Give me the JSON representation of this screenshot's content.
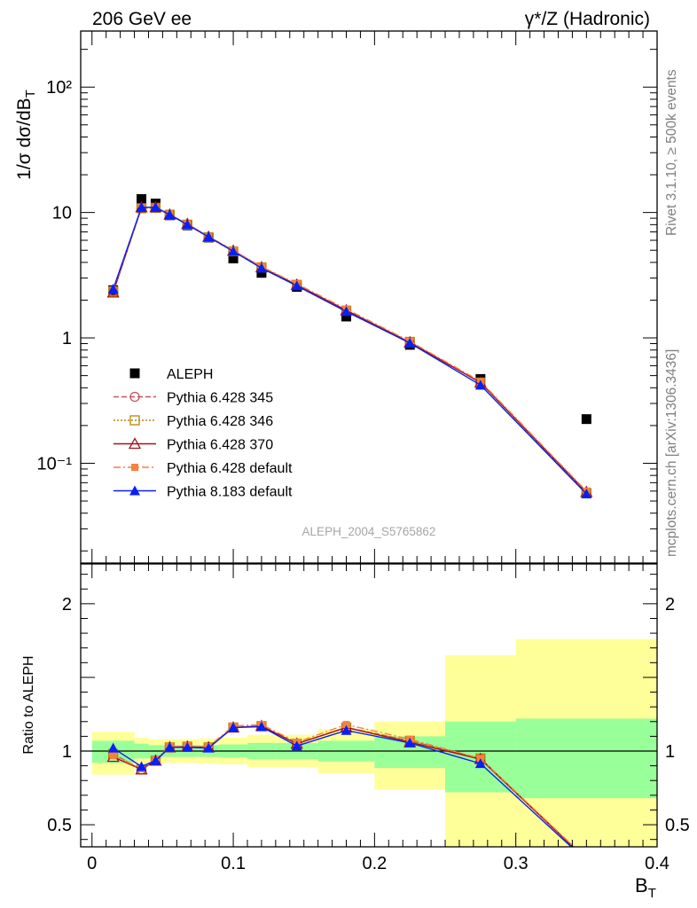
{
  "header": {
    "left": "206 GeV ee",
    "right": "γ*/Z (Hadronic)"
  },
  "side_text": {
    "top": "Rivet 3.1.10, ≥ 500k events",
    "bottom": "mcplots.cern.ch [arXiv:1306.3436]"
  },
  "watermark": "ALEPH_2004_S5765862",
  "chart_data": [
    {
      "type": "line",
      "ylabel": "1/σ dσ/dB_T",
      "yscale": "log",
      "ylim": [
        0.016,
        280
      ],
      "xlim": [
        -0.008,
        0.4
      ],
      "y_ticks": [
        {
          "value": 0.1,
          "label": "10⁻¹"
        },
        {
          "value": 1,
          "label": "1"
        },
        {
          "value": 10,
          "label": "10"
        },
        {
          "value": 100,
          "label": "10²"
        }
      ],
      "x": [
        0.015,
        0.035,
        0.045,
        0.055,
        0.0675,
        0.0825,
        0.1,
        0.12,
        0.145,
        0.18,
        0.225,
        0.275,
        0.35
      ],
      "series": [
        {
          "name": "ALEPH",
          "color": "#000000",
          "marker": "filled-square",
          "line": "none",
          "values": [
            2.4,
            12.8,
            11.8,
            9.5,
            7.9,
            6.3,
            4.3,
            3.3,
            2.55,
            1.48,
            0.88,
            0.47,
            0.225
          ]
        },
        {
          "name": "Pythia 6.428 345",
          "color": "#c4545f",
          "marker": "open-circle",
          "line": "dashed",
          "values": [
            2.35,
            10.8,
            10.9,
            9.6,
            8.0,
            6.35,
            4.9,
            3.65,
            2.65,
            1.65,
            0.93,
            0.44,
            0.058
          ]
        },
        {
          "name": "Pythia 6.428 346",
          "color": "#b8860b",
          "marker": "open-square",
          "line": "dotted",
          "values": [
            2.35,
            10.8,
            10.9,
            9.6,
            8.0,
            6.35,
            4.9,
            3.65,
            2.65,
            1.65,
            0.93,
            0.44,
            0.058
          ]
        },
        {
          "name": "Pythia 6.428 370",
          "color": "#a0141e",
          "marker": "open-triangle",
          "line": "solid",
          "values": [
            2.3,
            11.0,
            11.0,
            9.6,
            8.1,
            6.4,
            4.95,
            3.65,
            2.65,
            1.66,
            0.92,
            0.44,
            0.059
          ]
        },
        {
          "name": "Pythia 6.428 default",
          "color": "#f7813d",
          "marker": "filled-square-small",
          "line": "dashdot",
          "values": [
            2.4,
            11.0,
            11.0,
            9.7,
            8.1,
            6.45,
            5.0,
            3.7,
            2.7,
            1.7,
            0.94,
            0.45,
            0.06
          ]
        },
        {
          "name": "Pythia 8.183 default",
          "color": "#0a1ff5",
          "marker": "filled-triangle",
          "line": "solid",
          "values": [
            2.45,
            11.0,
            11.0,
            9.6,
            8.0,
            6.4,
            4.9,
            3.6,
            2.6,
            1.62,
            0.91,
            0.42,
            0.057
          ]
        }
      ]
    },
    {
      "type": "line",
      "ylabel": "Ratio to ALEPH",
      "xlabel": "B_T",
      "ylim": [
        0.35,
        2.27
      ],
      "xlim": [
        -0.008,
        0.4
      ],
      "y_ticks": [
        0.5,
        1,
        2
      ],
      "x_ticks": [
        0,
        0.1,
        0.2,
        0.3,
        0.4
      ],
      "reference_line": 1,
      "bands": [
        {
          "x0": 0.0,
          "x1": 0.03,
          "green": [
            0.92,
            1.07
          ],
          "yellow": [
            0.84,
            1.13
          ]
        },
        {
          "x0": 0.03,
          "x1": 0.04,
          "green": [
            0.95,
            1.05
          ],
          "yellow": [
            0.91,
            1.09
          ]
        },
        {
          "x0": 0.04,
          "x1": 0.05,
          "green": [
            0.95,
            1.04
          ],
          "yellow": [
            0.91,
            1.08
          ]
        },
        {
          "x0": 0.05,
          "x1": 0.06,
          "green": [
            0.96,
            1.04
          ],
          "yellow": [
            0.92,
            1.08
          ]
        },
        {
          "x0": 0.06,
          "x1": 0.075,
          "green": [
            0.96,
            1.04
          ],
          "yellow": [
            0.92,
            1.08
          ]
        },
        {
          "x0": 0.075,
          "x1": 0.09,
          "green": [
            0.96,
            1.04
          ],
          "yellow": [
            0.915,
            1.085
          ]
        },
        {
          "x0": 0.09,
          "x1": 0.11,
          "green": [
            0.955,
            1.045
          ],
          "yellow": [
            0.91,
            1.09
          ]
        },
        {
          "x0": 0.11,
          "x1": 0.13,
          "green": [
            0.945,
            1.055
          ],
          "yellow": [
            0.89,
            1.11
          ]
        },
        {
          "x0": 0.13,
          "x1": 0.16,
          "green": [
            0.945,
            1.055
          ],
          "yellow": [
            0.89,
            1.11
          ]
        },
        {
          "x0": 0.16,
          "x1": 0.2,
          "green": [
            0.93,
            1.07
          ],
          "yellow": [
            0.85,
            1.15
          ]
        },
        {
          "x0": 0.2,
          "x1": 0.25,
          "green": [
            0.885,
            1.1
          ],
          "yellow": [
            0.74,
            1.2
          ]
        },
        {
          "x0": 0.25,
          "x1": 0.3,
          "green": [
            0.72,
            1.2
          ],
          "yellow": [
            0.35,
            1.65
          ]
        },
        {
          "x0": 0.3,
          "x1": 0.4,
          "green": [
            0.68,
            1.22
          ],
          "yellow": [
            0.35,
            1.76
          ]
        }
      ],
      "x": [
        0.015,
        0.035,
        0.045,
        0.055,
        0.0675,
        0.0825,
        0.1,
        0.12,
        0.145,
        0.18,
        0.225,
        0.275,
        0.35
      ],
      "series": [
        {
          "name": "Pythia 6.428 345",
          "values": [
            0.98,
            0.875,
            0.935,
            1.025,
            1.03,
            1.025,
            1.16,
            1.17,
            1.05,
            1.16,
            1.07,
            0.95,
            0.265
          ]
        },
        {
          "name": "Pythia 6.428 346",
          "values": [
            0.98,
            0.875,
            0.935,
            1.025,
            1.03,
            1.025,
            1.16,
            1.17,
            1.05,
            1.16,
            1.07,
            0.95,
            0.26
          ]
        },
        {
          "name": "Pythia 6.428 370",
          "values": [
            0.96,
            0.875,
            0.935,
            1.025,
            1.03,
            1.025,
            1.16,
            1.17,
            1.05,
            1.16,
            1.06,
            0.945,
            0.262
          ]
        },
        {
          "name": "Pythia 6.428 default",
          "values": [
            0.97,
            0.88,
            0.94,
            1.03,
            1.035,
            1.03,
            1.17,
            1.18,
            1.06,
            1.18,
            1.08,
            0.95,
            0.27
          ]
        },
        {
          "name": "Pythia 8.183 default",
          "values": [
            1.02,
            0.895,
            0.935,
            1.025,
            1.025,
            1.02,
            1.16,
            1.165,
            1.035,
            1.14,
            1.055,
            0.915,
            0.255
          ]
        }
      ]
    }
  ]
}
